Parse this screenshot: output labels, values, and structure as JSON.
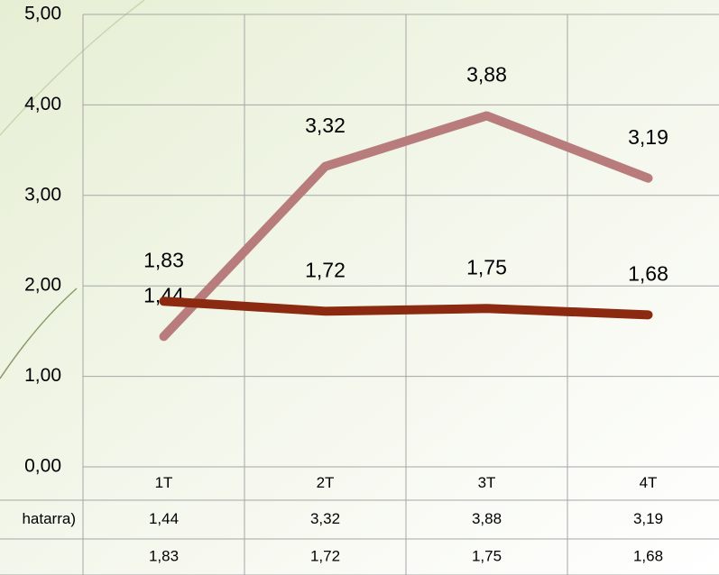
{
  "chart_data": {
    "type": "line",
    "categories": [
      "1T",
      "2T",
      "3T",
      "4T"
    ],
    "series": [
      {
        "name": "hatarra)",
        "color": "#b97c7c",
        "values": [
          1.44,
          3.32,
          3.88,
          3.19
        ],
        "value_labels": [
          "1,44",
          "3,32",
          "3,88",
          "3,19"
        ]
      },
      {
        "name": null,
        "color": "#8b2a10",
        "values": [
          1.83,
          1.72,
          1.75,
          1.68
        ],
        "value_labels": [
          "1,83",
          "1,72",
          "1,75",
          "1,68"
        ]
      }
    ],
    "ylim": [
      0,
      5
    ],
    "yticks": [
      {
        "value": 0,
        "label": "0,00"
      },
      {
        "value": 1,
        "label": "1,00"
      },
      {
        "value": 2,
        "label": "2,00"
      },
      {
        "value": 3,
        "label": "3,00"
      },
      {
        "value": 4,
        "label": "4,00"
      },
      {
        "value": 5,
        "label": "5,00"
      }
    ],
    "grid": true
  }
}
